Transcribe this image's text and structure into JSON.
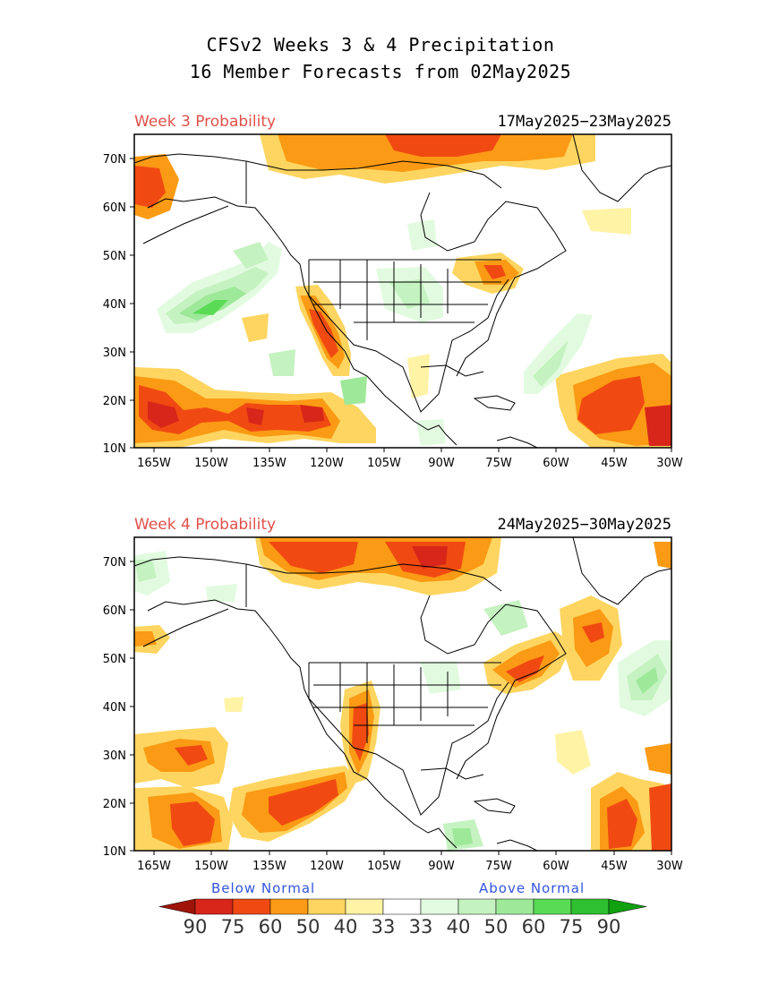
{
  "title": {
    "line1": "CFSv2 Weeks 3 & 4 Precipitation",
    "line2": "16 Member Forecasts from 02May2025"
  },
  "panels": [
    {
      "label": "Week 3 Probability",
      "dates": "17May2025−23May2025"
    },
    {
      "label": "Week 4 Probability",
      "dates": "24May2025−30May2025"
    }
  ],
  "axes": {
    "lat_labels": [
      "70N",
      "60N",
      "50N",
      "40N",
      "30N",
      "20N",
      "10N"
    ],
    "lon_labels": [
      "165W",
      "150W",
      "135W",
      "120W",
      "105W",
      "90W",
      "75W",
      "60W",
      "45W",
      "30W"
    ]
  },
  "legend": {
    "below_label": "Below Normal",
    "above_label": "Above Normal",
    "values": [
      "90",
      "75",
      "60",
      "50",
      "40",
      "33",
      "33",
      "40",
      "50",
      "60",
      "75",
      "90"
    ],
    "colors": [
      "#9e1408",
      "#d8261a",
      "#f04a12",
      "#fb9a14",
      "#fdd560",
      "#fff3a6",
      "#ffffff",
      "#e2fbe0",
      "#c4f2c0",
      "#9ee89a",
      "#5adb55",
      "#2fc030",
      "#10a010"
    ]
  }
}
